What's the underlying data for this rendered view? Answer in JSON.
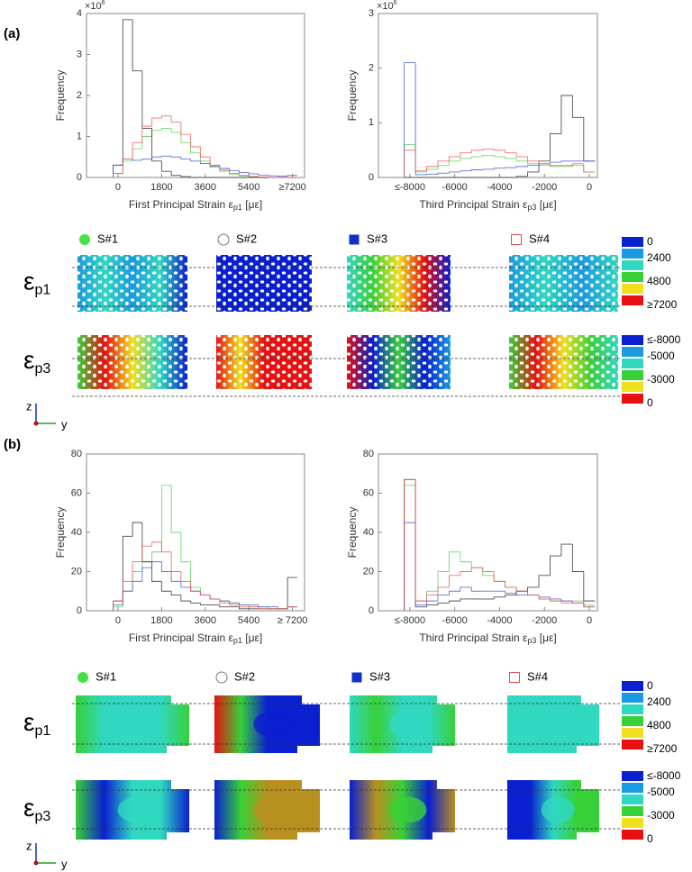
{
  "panels": [
    "(a)",
    "(b)"
  ],
  "chart_data": [
    {
      "type": "histogram",
      "ylabel": "Frequency",
      "xlabel": [
        "First Principal Strain ",
        "ε",
        "p1",
        " [με]"
      ],
      "y_multiplier": [
        "×10",
        "6"
      ],
      "x": [
        0,
        400,
        800,
        1200,
        1600,
        2000,
        2400,
        2800,
        3200,
        3600,
        4000,
        4400,
        4800,
        5200,
        5600,
        6000,
        6400,
        6800,
        7200
      ],
      "xlim": [
        -1300,
        7700
      ],
      "xticks": [
        0,
        1800,
        3600,
        5400,
        {
          "value": 7200,
          "label": "≥7200"
        }
      ],
      "ylim": [
        0,
        4
      ],
      "yticks": [
        0,
        1,
        2,
        3,
        4
      ],
      "series": [
        {
          "name": "S#1",
          "color": "#55d855",
          "values": [
            0.1,
            0.4,
            0.7,
            1.0,
            1.15,
            1.2,
            1.1,
            0.85,
            0.6,
            0.4,
            0.25,
            0.15,
            0.08,
            0.04,
            0.02,
            0.01,
            0,
            0,
            0
          ]
        },
        {
          "name": "S#2",
          "color": "#333333",
          "values": [
            0.3,
            3.85,
            2.6,
            1.2,
            0.4,
            0.15,
            0.05,
            0.02,
            0,
            0,
            0,
            0,
            0,
            0,
            0,
            0,
            0,
            0,
            0
          ]
        },
        {
          "name": "S#3",
          "color": "#4a5ad8",
          "values": [
            0.3,
            0.45,
            0.42,
            0.45,
            0.5,
            0.52,
            0.5,
            0.45,
            0.4,
            0.34,
            0.28,
            0.22,
            0.17,
            0.12,
            0.09,
            0.06,
            0.04,
            0.03,
            0.05
          ]
        },
        {
          "name": "S#4",
          "color": "#ee5a5a",
          "values": [
            0.1,
            0.45,
            0.85,
            1.25,
            1.45,
            1.5,
            1.35,
            1.05,
            0.75,
            0.5,
            0.3,
            0.18,
            0.1,
            0.05,
            0.02,
            0.01,
            0,
            0,
            0
          ]
        }
      ]
    },
    {
      "type": "histogram",
      "ylabel": "Frequency",
      "xlabel": [
        "Third Principal Strain ",
        "ε",
        "p3",
        " [με]"
      ],
      "y_multiplier": [
        "×10",
        "6"
      ],
      "x": [
        -8000,
        -7500,
        -7000,
        -6500,
        -6000,
        -5500,
        -5000,
        -4500,
        -4000,
        -3500,
        -3000,
        -2500,
        -2000,
        -1500,
        -1000,
        -500,
        0
      ],
      "xlim": [
        -9400,
        360
      ],
      "xticks": [
        {
          "value": -8000,
          "label": "≤-8000"
        },
        -6000,
        -4000,
        -2000,
        0
      ],
      "ylim": [
        0,
        3
      ],
      "yticks": [
        0,
        1,
        2,
        3
      ],
      "series": [
        {
          "color": "#55d855",
          "values": [
            0.6,
            0.1,
            0.15,
            0.22,
            0.3,
            0.35,
            0.38,
            0.4,
            0.38,
            0.35,
            0.3,
            0.25,
            0.22,
            0.2,
            0.2,
            0.22,
            0.1
          ]
        },
        {
          "color": "#333333",
          "values": [
            0,
            0,
            0,
            0,
            0,
            0,
            0,
            0,
            0,
            0,
            0.02,
            0.1,
            0.3,
            0.8,
            1.5,
            1.1,
            0.3
          ]
        },
        {
          "color": "#4a5ad8",
          "values": [
            2.1,
            0.05,
            0.06,
            0.08,
            0.1,
            0.12,
            0.14,
            0.15,
            0.17,
            0.18,
            0.2,
            0.22,
            0.25,
            0.28,
            0.3,
            0.3,
            0.3
          ]
        },
        {
          "color": "#ee5a5a",
          "values": [
            0.5,
            0.12,
            0.2,
            0.3,
            0.38,
            0.45,
            0.5,
            0.52,
            0.5,
            0.45,
            0.38,
            0.3,
            0.25,
            0.22,
            0.22,
            0.25,
            0.1
          ]
        }
      ]
    },
    {
      "type": "histogram",
      "ylabel": "Frequency",
      "xlabel": [
        "First Principal Strain ",
        "ε",
        "p1",
        " [με]"
      ],
      "x": [
        0,
        400,
        800,
        1200,
        1600,
        2000,
        2400,
        2800,
        3200,
        3600,
        4000,
        4400,
        4800,
        5200,
        5600,
        6000,
        6400,
        6800,
        7200
      ],
      "xlim": [
        -1300,
        7700
      ],
      "xticks": [
        0,
        1800,
        3600,
        5400,
        {
          "value": 7200,
          "label": "≥ 7200"
        }
      ],
      "ylim": [
        0,
        80
      ],
      "yticks": [
        0,
        20,
        40,
        60,
        80
      ],
      "series": [
        {
          "name": "S#1",
          "color": "#55d855",
          "values": [
            2,
            10,
            20,
            25,
            30,
            64,
            40,
            25,
            12,
            8,
            6,
            5,
            4,
            3,
            2,
            2,
            1,
            1,
            2
          ]
        },
        {
          "name": "S#2",
          "color": "#333333",
          "values": [
            5,
            38,
            45,
            25,
            15,
            10,
            8,
            5,
            4,
            3,
            3,
            2,
            2,
            1,
            1,
            1,
            1,
            1,
            17
          ]
        },
        {
          "name": "S#3",
          "color": "#4a5ad8",
          "values": [
            3,
            10,
            15,
            22,
            25,
            20,
            15,
            12,
            10,
            8,
            6,
            5,
            4,
            3,
            3,
            2,
            2,
            1,
            2
          ]
        },
        {
          "name": "S#4",
          "color": "#ee5a5a",
          "values": [
            5,
            15,
            25,
            33,
            35,
            30,
            20,
            15,
            10,
            8,
            6,
            4,
            3,
            2,
            2,
            1,
            1,
            1,
            2
          ]
        }
      ]
    },
    {
      "type": "histogram",
      "ylabel": "Frequency",
      "xlabel": [
        "Third Principal Strain ",
        "ε",
        "p3",
        " [με]"
      ],
      "x": [
        -8000,
        -7500,
        -7000,
        -6500,
        -6000,
        -5500,
        -5000,
        -4500,
        -4000,
        -3500,
        -3000,
        -2500,
        -2000,
        -1500,
        -1000,
        -500,
        0
      ],
      "xlim": [
        -9400,
        360
      ],
      "xticks": [
        {
          "value": -8000,
          "label": "≤-8000"
        },
        -6000,
        -4000,
        -2000,
        0
      ],
      "ylim": [
        0,
        80
      ],
      "yticks": [
        0,
        20,
        40,
        60,
        80
      ],
      "series": [
        {
          "color": "#55d855",
          "values": [
            64,
            5,
            10,
            20,
            30,
            25,
            22,
            18,
            15,
            12,
            10,
            8,
            6,
            5,
            5,
            5,
            3
          ]
        },
        {
          "color": "#333333",
          "values": [
            67,
            2,
            3,
            4,
            5,
            6,
            6,
            6,
            7,
            8,
            10,
            12,
            18,
            28,
            34,
            20,
            5
          ]
        },
        {
          "color": "#4a5ad8",
          "values": [
            45,
            3,
            5,
            8,
            10,
            12,
            10,
            10,
            10,
            9,
            8,
            8,
            7,
            6,
            5,
            4,
            2
          ]
        },
        {
          "color": "#ee5a5a",
          "values": [
            67,
            5,
            8,
            12,
            18,
            20,
            22,
            20,
            15,
            12,
            10,
            8,
            6,
            5,
            4,
            4,
            2
          ]
        }
      ]
    }
  ],
  "maps": [
    {
      "rows": [
        {
          "symbol": "ε",
          "sub": "p1"
        },
        {
          "symbol": "ε",
          "sub": "p3"
        }
      ],
      "colorbars": [
        [
          "0",
          "2400",
          "4800",
          "≥7200"
        ],
        [
          "≤-8000",
          "-5000",
          "-3000",
          "0"
        ]
      ],
      "axes": [
        "z",
        "y"
      ]
    },
    {
      "rows": [
        {
          "symbol": "ε",
          "sub": "p1"
        },
        {
          "symbol": "ε",
          "sub": "p3"
        }
      ],
      "colorbars": [
        [
          "0",
          "2400",
          "4800",
          "≥7200"
        ],
        [
          "≤-8000",
          "-5000",
          "-3000",
          "0"
        ]
      ],
      "axes": [
        "z",
        "y"
      ]
    }
  ]
}
